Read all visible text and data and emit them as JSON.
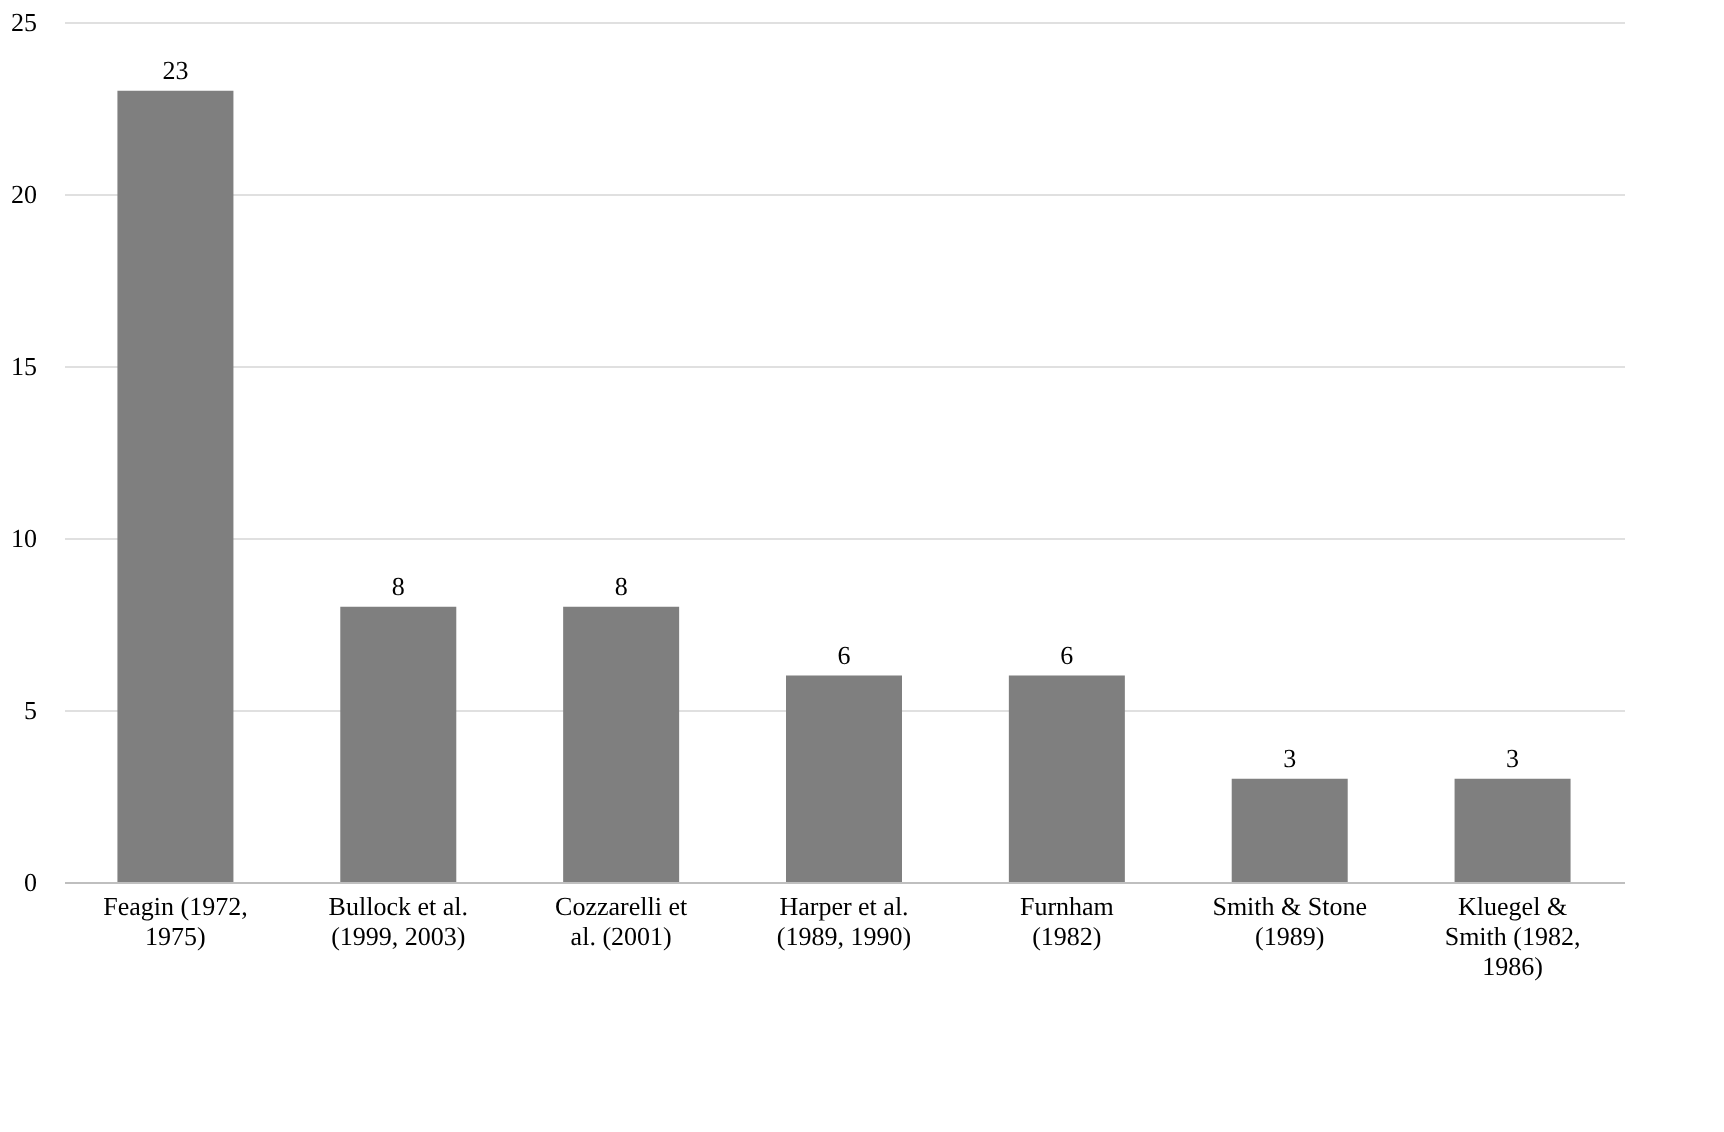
{
  "chart_data": {
    "type": "bar",
    "categories": [
      "Feagin (1972,\n1975)",
      "Bullock et al.\n(1999, 2003)",
      "Cozzarelli et\nal. (2001)",
      "Harper et al.\n(1989, 1990)",
      "Furnham\n(1982)",
      "Smith & Stone\n(1989)",
      "Kluegel &\nSmith (1982,\n1986)"
    ],
    "values": [
      23,
      8,
      8,
      6,
      6,
      3,
      3
    ],
    "color": "#7f7f7f",
    "ylim": [
      0,
      25
    ],
    "yticks": [
      0,
      5,
      10,
      15,
      20,
      25
    ],
    "grid": "y",
    "data_labels": true
  }
}
